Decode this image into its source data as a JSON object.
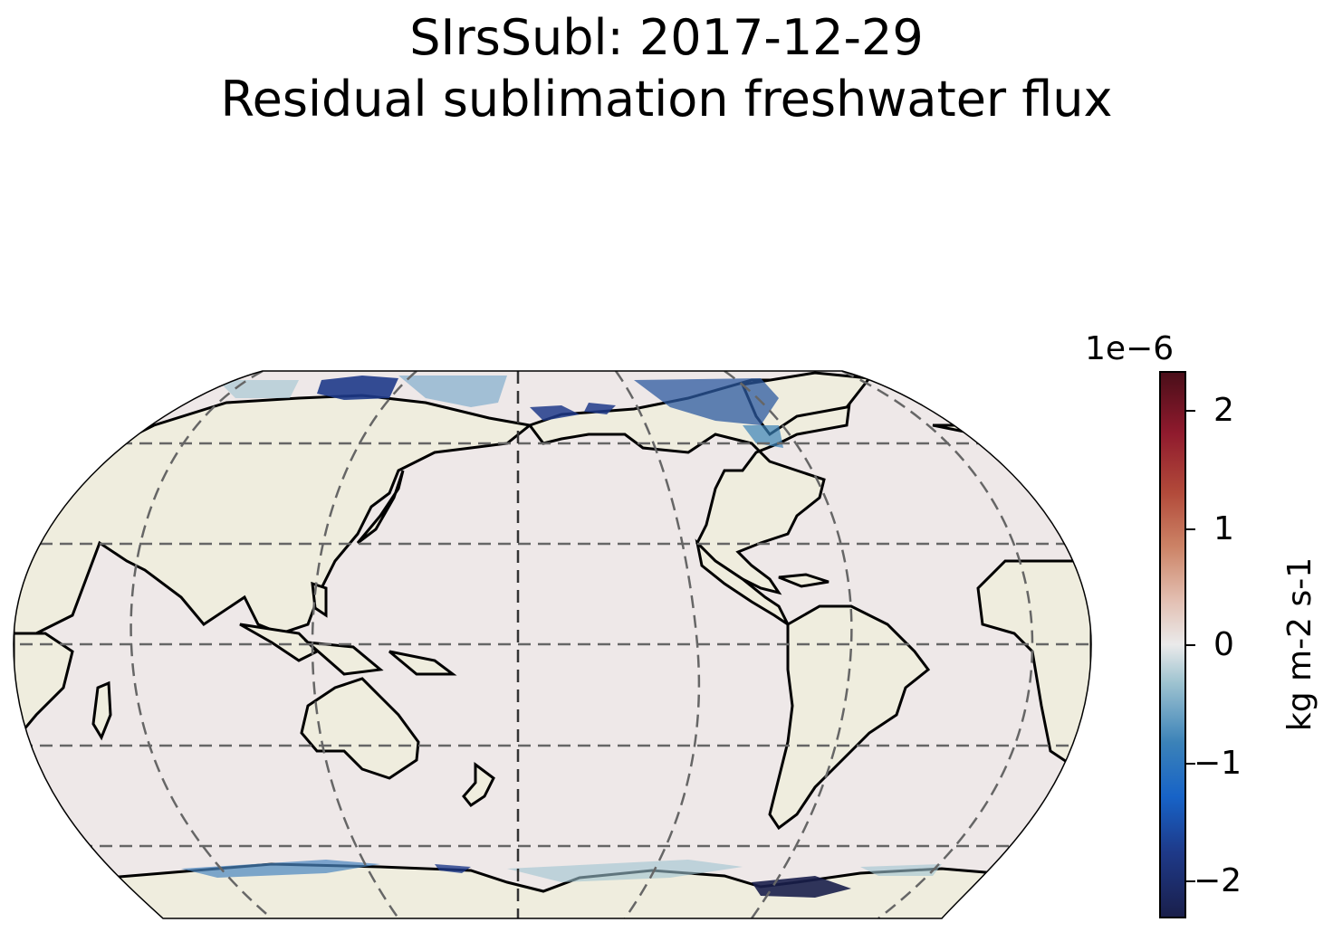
{
  "title": {
    "line1": "SIrsSubl: 2017-12-29",
    "line2": "Residual sublimation freshwater flux"
  },
  "map": {
    "projection": "Robinson, centered on the Pacific (~180°)",
    "gridlines": "on",
    "colors": {
      "land": "#efedde",
      "ocean": "#eee8e8",
      "coastline": "#000000",
      "gridline": "#666666",
      "central_meridian": "#333333"
    }
  },
  "colorbar": {
    "exponent_label": "1e−6",
    "units_label": "kg m-2 s-1",
    "ticks": [
      "2",
      "1",
      "0",
      "−1",
      "−2"
    ],
    "range": [
      -2.3,
      2.3
    ],
    "colormap": "balance (blue-white-red)"
  }
}
